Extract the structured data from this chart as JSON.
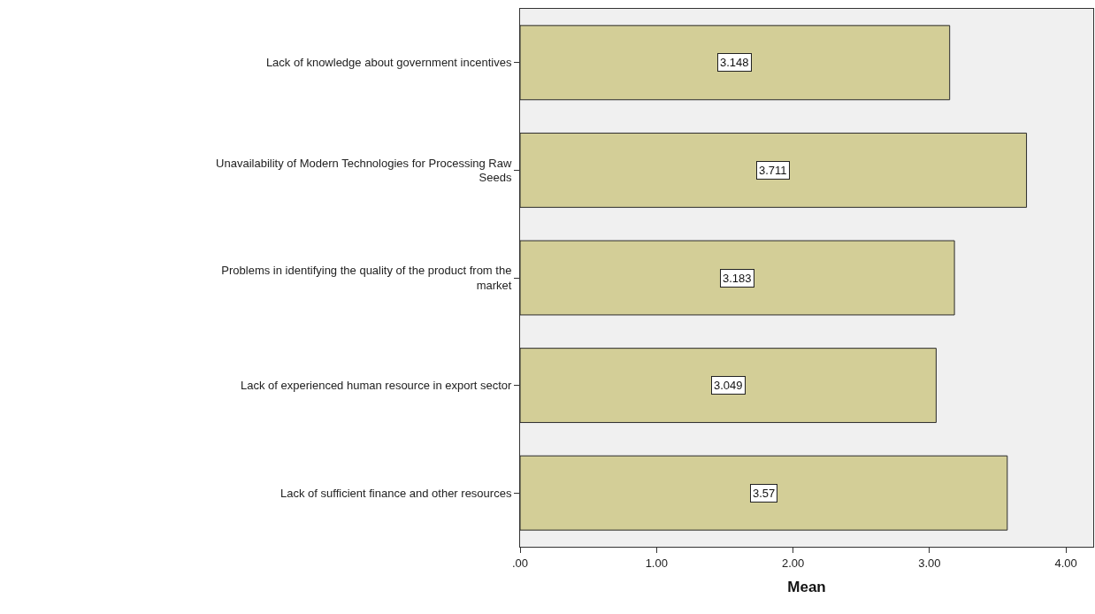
{
  "chart_data": {
    "type": "bar",
    "orientation": "horizontal",
    "xlabel": "Mean",
    "categories": [
      "Lack of knowledge about government incentives",
      "Unavailability of Modern Technologies for Processing Raw Seeds",
      "Problems in identifying the quality of the product from the market",
      "Lack of experienced human resource in export sector",
      "Lack of sufficient finance and other resources"
    ],
    "values": [
      3.148,
      3.711,
      3.183,
      3.049,
      3.57
    ],
    "color": "#d3ce97",
    "xlim": [
      0,
      4.2
    ],
    "xticks": [
      {
        "value": 0,
        "label": ".00"
      },
      {
        "value": 1,
        "label": "1.00"
      },
      {
        "value": 2,
        "label": "2.00"
      },
      {
        "value": 3,
        "label": "3.00"
      },
      {
        "value": 4,
        "label": "4.00"
      }
    ],
    "data_labels": true
  }
}
